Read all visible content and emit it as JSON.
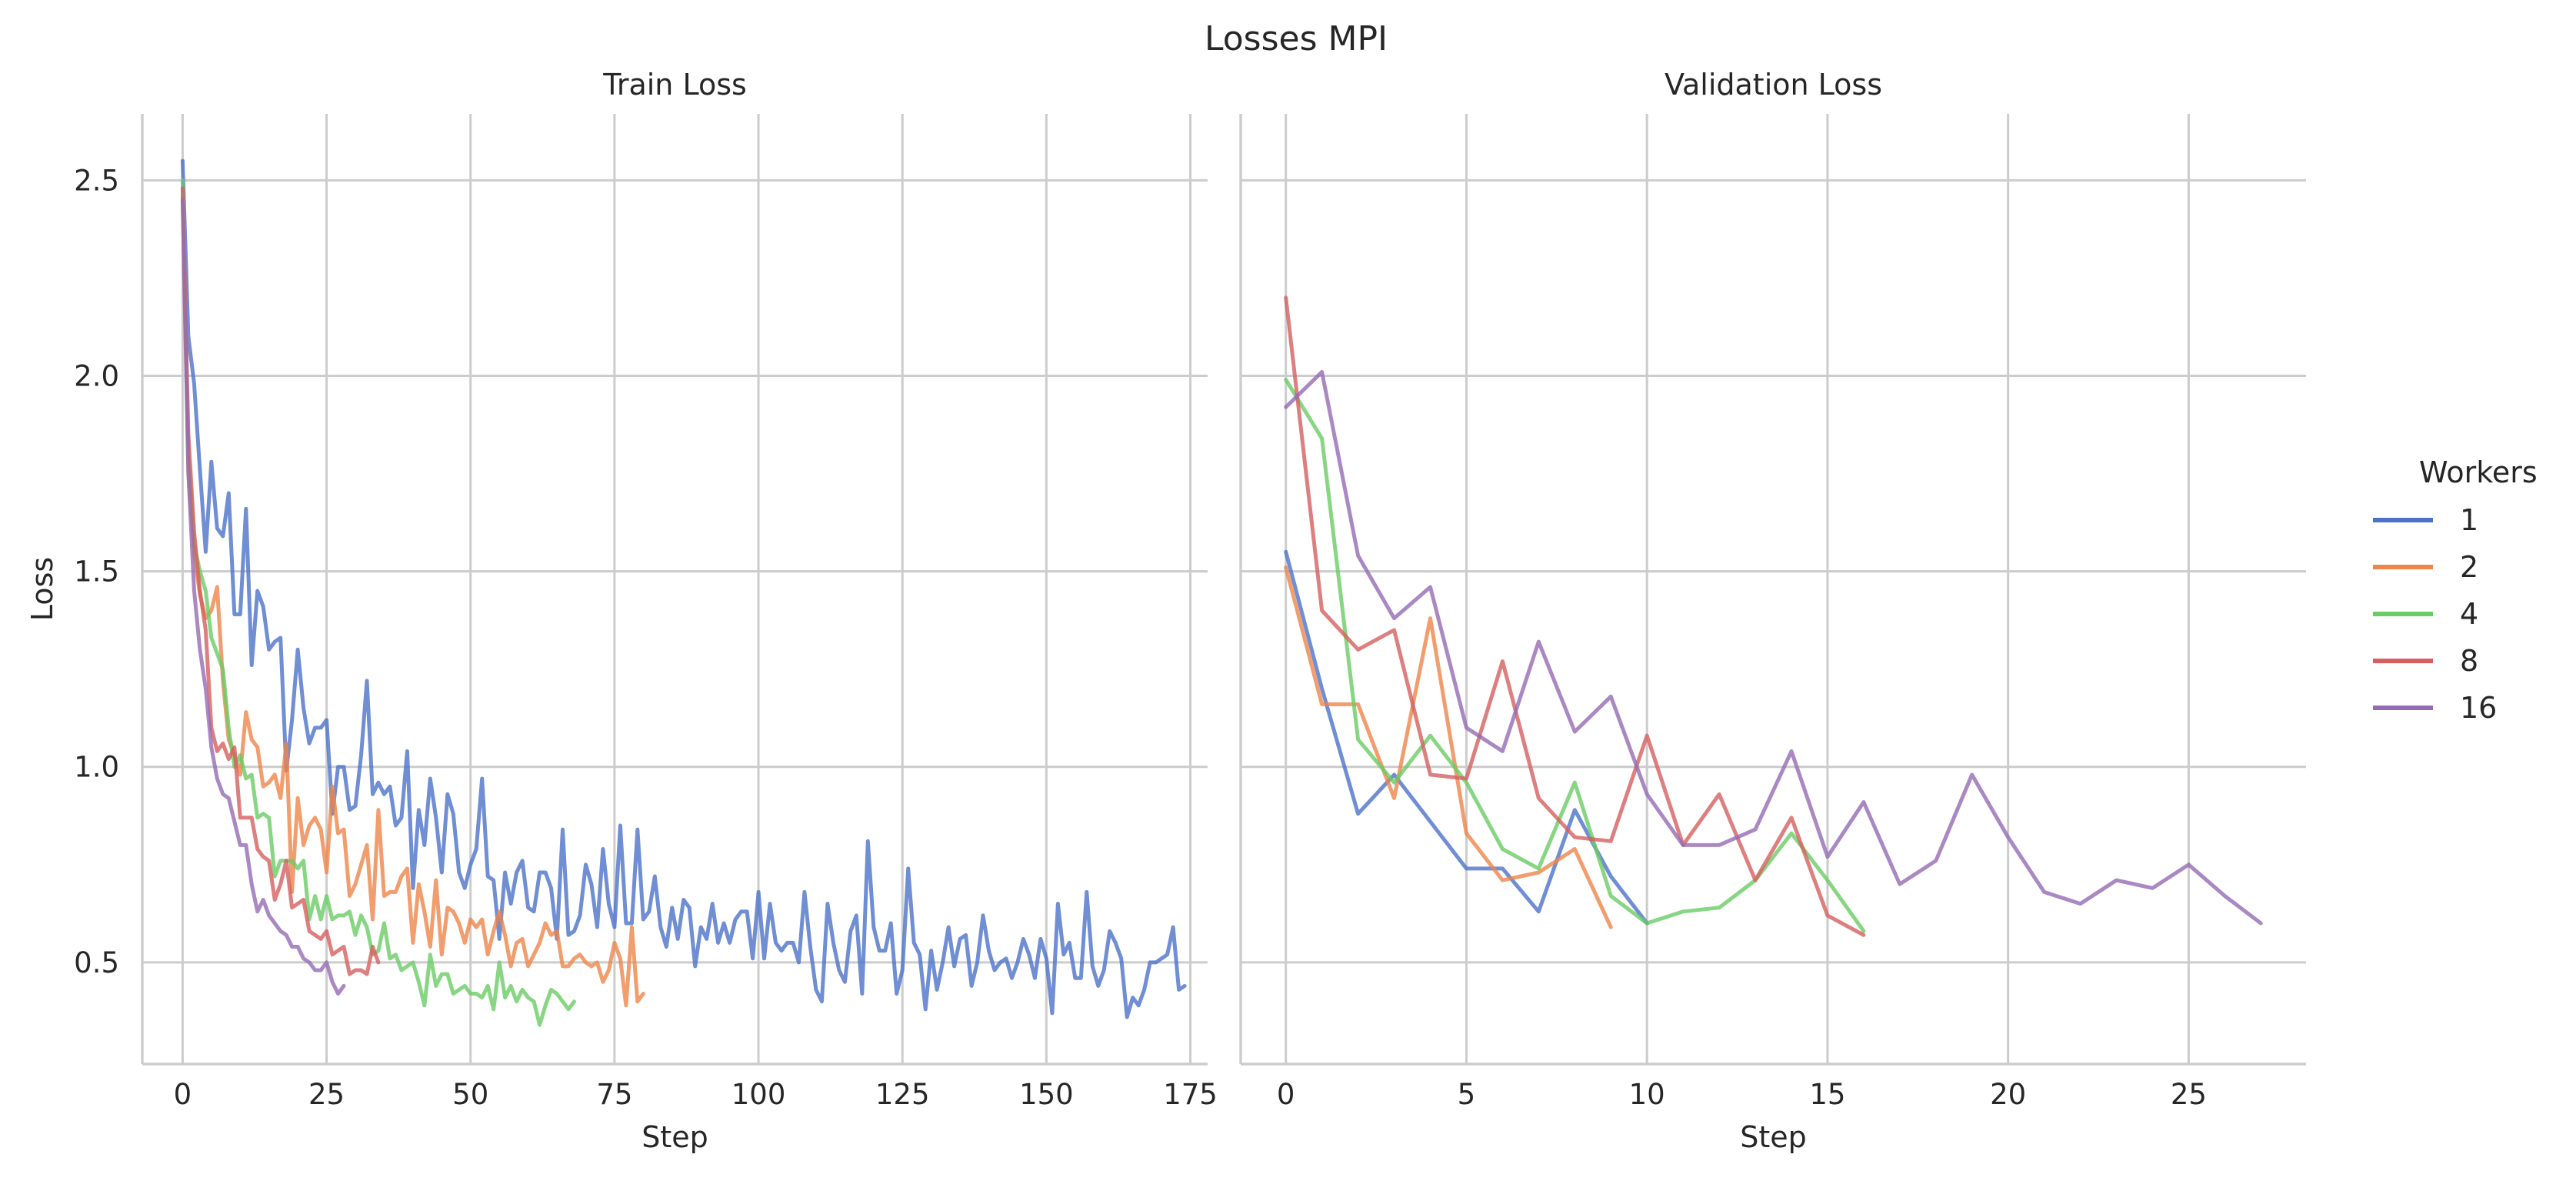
{
  "figure": {
    "title": "Losses MPI"
  },
  "legend": {
    "title": "Workers",
    "placement": "right",
    "entries": [
      "1",
      "2",
      "4",
      "8",
      "16"
    ]
  },
  "colors": {
    "1": "#4c72c9",
    "2": "#ee8549",
    "4": "#6acc64",
    "8": "#d65f5f",
    "16": "#956cb4"
  },
  "chart_data": [
    {
      "type": "line",
      "title": "Train Loss",
      "xlabel": "Step",
      "ylabel": "Loss",
      "xlim": [
        -7,
        178
      ],
      "ylim": [
        0.24,
        2.67
      ],
      "xticks": [
        0,
        25,
        50,
        75,
        100,
        125,
        150,
        175
      ],
      "yticks": [
        0.5,
        1.0,
        1.5,
        2.0,
        2.5
      ],
      "ytick_labels": [
        "0.5",
        "1.0",
        "1.5",
        "2.0",
        "2.5"
      ],
      "grid": true,
      "series": [
        {
          "name": "1",
          "values": [
            2.55,
            2.1,
            1.98,
            1.76,
            1.55,
            1.78,
            1.61,
            1.59,
            1.7,
            1.39,
            1.39,
            1.66,
            1.26,
            1.45,
            1.41,
            1.3,
            1.32,
            1.33,
            0.99,
            1.12,
            1.3,
            1.15,
            1.06,
            1.1,
            1.1,
            1.12,
            0.88,
            1.0,
            1.0,
            0.89,
            0.9,
            1.03,
            1.22,
            0.93,
            0.96,
            0.93,
            0.95,
            0.85,
            0.87,
            1.04,
            0.69,
            0.89,
            0.8,
            0.97,
            0.87,
            0.73,
            0.93,
            0.88,
            0.73,
            0.69,
            0.75,
            0.79,
            0.97,
            0.72,
            0.71,
            0.56,
            0.73,
            0.65,
            0.73,
            0.76,
            0.64,
            0.63,
            0.73,
            0.73,
            0.69,
            0.56,
            0.84,
            0.57,
            0.58,
            0.62,
            0.75,
            0.7,
            0.59,
            0.79,
            0.65,
            0.59,
            0.85,
            0.6,
            0.6,
            0.84,
            0.61,
            0.63,
            0.72,
            0.59,
            0.54,
            0.64,
            0.56,
            0.66,
            0.64,
            0.49,
            0.59,
            0.56,
            0.65,
            0.55,
            0.6,
            0.55,
            0.61,
            0.63,
            0.63,
            0.51,
            0.68,
            0.51,
            0.65,
            0.55,
            0.53,
            0.55,
            0.55,
            0.5,
            0.68,
            0.54,
            0.43,
            0.4,
            0.65,
            0.55,
            0.48,
            0.45,
            0.58,
            0.62,
            0.42,
            0.81,
            0.59,
            0.53,
            0.53,
            0.6,
            0.42,
            0.48,
            0.74,
            0.55,
            0.52,
            0.38,
            0.53,
            0.43,
            0.5,
            0.59,
            0.49,
            0.56,
            0.57,
            0.44,
            0.5,
            0.62,
            0.53,
            0.48,
            0.5,
            0.51,
            0.46,
            0.5,
            0.56,
            0.52,
            0.46,
            0.56,
            0.51,
            0.37,
            0.65,
            0.52,
            0.55,
            0.46,
            0.46,
            0.68,
            0.49,
            0.44,
            0.48,
            0.58,
            0.55,
            0.51,
            0.36,
            0.41,
            0.39,
            0.43,
            0.5,
            0.5,
            0.51,
            0.52,
            0.59,
            0.43,
            0.44
          ]
        },
        {
          "name": "2",
          "values": [
            2.46,
            1.75,
            1.55,
            1.44,
            1.38,
            1.4,
            1.46,
            1.22,
            1.07,
            1.03,
            0.98,
            1.14,
            1.07,
            1.05,
            0.95,
            0.96,
            0.98,
            0.92,
            1.06,
            0.68,
            0.92,
            0.8,
            0.85,
            0.87,
            0.84,
            0.73,
            0.95,
            0.83,
            0.84,
            0.67,
            0.7,
            0.75,
            0.8,
            0.61,
            0.89,
            0.67,
            0.68,
            0.68,
            0.72,
            0.74,
            0.55,
            0.7,
            0.63,
            0.54,
            0.71,
            0.52,
            0.64,
            0.63,
            0.6,
            0.55,
            0.61,
            0.59,
            0.61,
            0.52,
            0.58,
            0.63,
            0.57,
            0.49,
            0.55,
            0.56,
            0.49,
            0.52,
            0.55,
            0.6,
            0.57,
            0.58,
            0.49,
            0.49,
            0.51,
            0.52,
            0.5,
            0.49,
            0.5,
            0.45,
            0.48,
            0.55,
            0.51,
            0.39,
            0.59,
            0.4,
            0.42
          ]
        },
        {
          "name": "4",
          "values": [
            2.5,
            1.8,
            1.57,
            1.5,
            1.45,
            1.33,
            1.29,
            1.25,
            1.1,
            1.0,
            1.03,
            0.97,
            0.98,
            0.87,
            0.88,
            0.87,
            0.72,
            0.76,
            0.76,
            0.76,
            0.74,
            0.76,
            0.61,
            0.67,
            0.61,
            0.67,
            0.61,
            0.62,
            0.62,
            0.63,
            0.57,
            0.62,
            0.59,
            0.52,
            0.53,
            0.6,
            0.51,
            0.52,
            0.48,
            0.49,
            0.5,
            0.45,
            0.39,
            0.52,
            0.44,
            0.47,
            0.47,
            0.42,
            0.43,
            0.44,
            0.42,
            0.42,
            0.41,
            0.44,
            0.38,
            0.5,
            0.41,
            0.44,
            0.4,
            0.43,
            0.41,
            0.4,
            0.34,
            0.39,
            0.43,
            0.42,
            0.4,
            0.38,
            0.4
          ]
        },
        {
          "name": "8",
          "values": [
            2.48,
            1.85,
            1.6,
            1.45,
            1.35,
            1.1,
            1.04,
            1.06,
            1.02,
            1.05,
            0.87,
            0.87,
            0.87,
            0.79,
            0.77,
            0.76,
            0.66,
            0.7,
            0.76,
            0.64,
            0.65,
            0.66,
            0.58,
            0.57,
            0.56,
            0.58,
            0.52,
            0.53,
            0.54,
            0.47,
            0.48,
            0.48,
            0.47,
            0.54,
            0.5
          ]
        },
        {
          "name": "16",
          "values": [
            2.45,
            1.75,
            1.45,
            1.3,
            1.2,
            1.05,
            0.97,
            0.93,
            0.92,
            0.86,
            0.8,
            0.8,
            0.7,
            0.63,
            0.66,
            0.62,
            0.6,
            0.58,
            0.57,
            0.54,
            0.54,
            0.51,
            0.5,
            0.48,
            0.48,
            0.5,
            0.45,
            0.42,
            0.44
          ]
        }
      ]
    },
    {
      "type": "line",
      "title": "Validation Loss",
      "xlabel": "Step",
      "ylabel": "",
      "xlim": [
        -1.25,
        28.25
      ],
      "ylim": [
        0.24,
        2.67
      ],
      "xticks": [
        0,
        5,
        10,
        15,
        20,
        25
      ],
      "yticks": [
        0.5,
        1.0,
        1.5,
        2.0,
        2.5
      ],
      "grid": true,
      "series": [
        {
          "name": "1",
          "values": [
            1.55,
            1.2,
            0.88,
            0.98,
            0.86,
            0.74,
            0.74,
            0.63,
            0.89,
            0.72,
            0.6
          ]
        },
        {
          "name": "2",
          "values": [
            1.51,
            1.16,
            1.16,
            0.92,
            1.38,
            0.83,
            0.71,
            0.73,
            0.79,
            0.59
          ]
        },
        {
          "name": "4",
          "values": [
            1.99,
            1.84,
            1.07,
            0.96,
            1.08,
            0.96,
            0.79,
            0.74,
            0.96,
            0.67,
            0.6,
            0.63,
            0.64,
            0.71,
            0.83,
            0.71,
            0.58
          ]
        },
        {
          "name": "8",
          "values": [
            2.2,
            1.4,
            1.3,
            1.35,
            0.98,
            0.97,
            1.27,
            0.92,
            0.82,
            0.81,
            1.08,
            0.8,
            0.93,
            0.71,
            0.87,
            0.62,
            0.57
          ]
        },
        {
          "name": "16",
          "values": [
            1.92,
            2.01,
            1.54,
            1.38,
            1.46,
            1.1,
            1.04,
            1.32,
            1.09,
            1.18,
            0.93,
            0.8,
            0.8,
            0.84,
            1.04,
            0.77,
            0.91,
            0.7,
            0.76,
            0.98,
            0.82,
            0.68,
            0.65,
            0.71,
            0.69,
            0.75,
            0.67,
            0.6
          ]
        }
      ]
    }
  ]
}
